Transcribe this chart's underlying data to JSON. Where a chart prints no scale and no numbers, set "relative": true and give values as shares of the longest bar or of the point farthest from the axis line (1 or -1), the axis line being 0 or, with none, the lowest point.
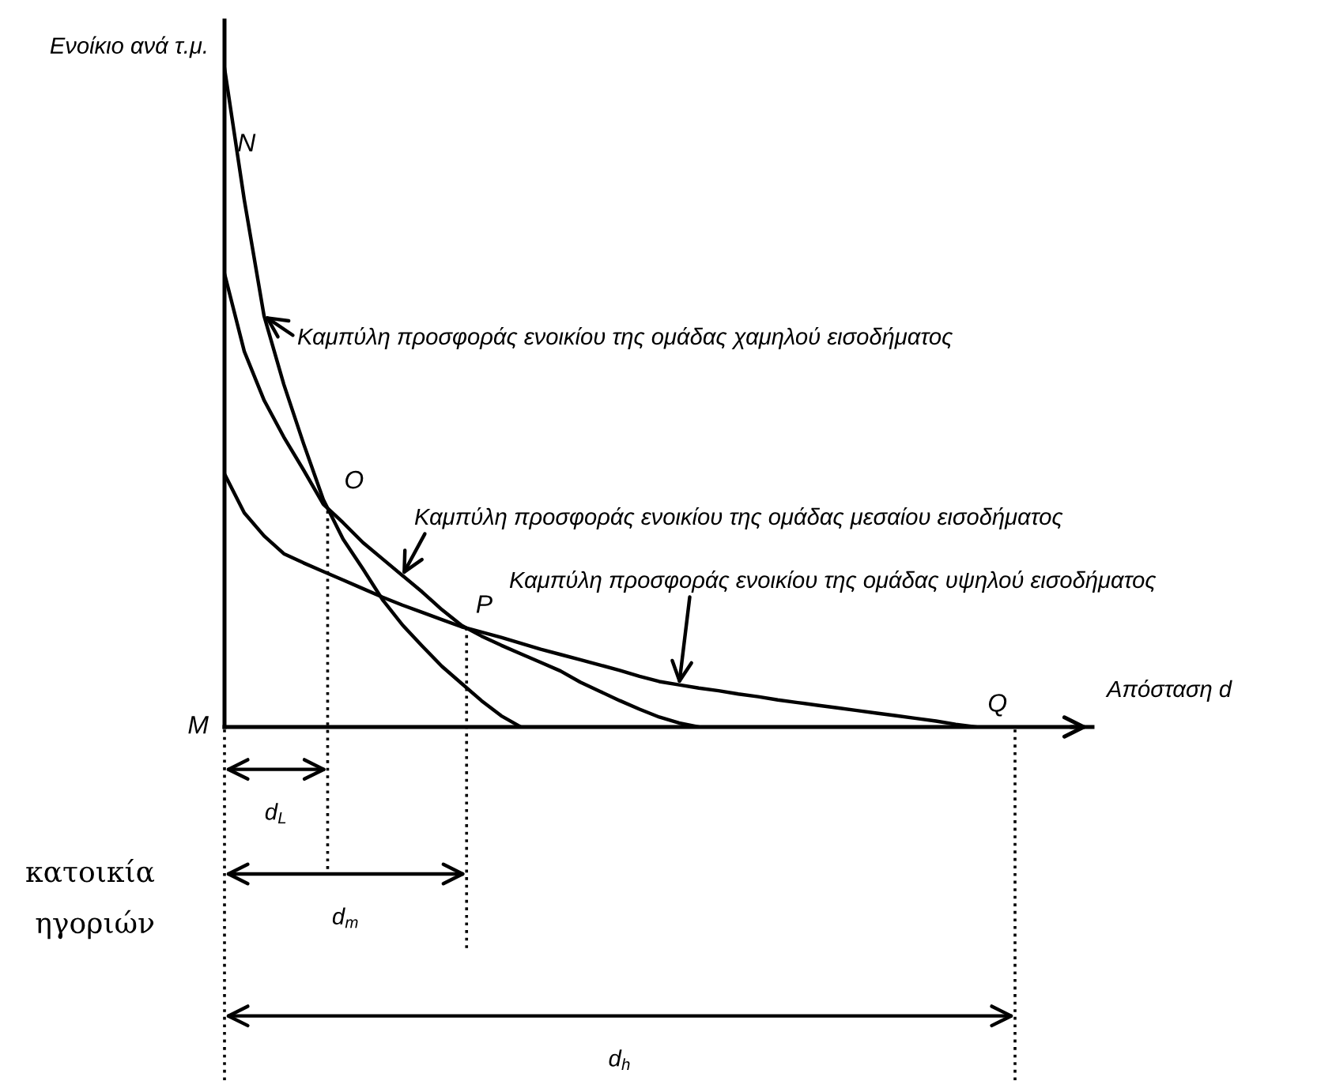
{
  "chart_data": {
    "type": "line",
    "relative": true,
    "ylabel": "Ενοίκιο ανά τ.μ.",
    "xlabel": "Απόσταση d",
    "categories": [
      null,
      null,
      null,
      null,
      null,
      null,
      null,
      null,
      null,
      null,
      null,
      null,
      null,
      null,
      null,
      null,
      null,
      null,
      null,
      null,
      null,
      null,
      null,
      null,
      null,
      null,
      null,
      null,
      null,
      null,
      null,
      null,
      null,
      null,
      null,
      null,
      null,
      null,
      null,
      null,
      null
    ],
    "series": [
      {
        "name": "Καμπύλη προσφοράς ενοικίου της ομάδας χαμηλού εισοδήματος",
        "color": "#000000",
        "values": [
          1.0,
          0.8,
          0.624,
          0.52,
          0.43,
          0.345,
          0.285,
          0.24,
          0.193,
          0.155,
          0.123,
          0.092,
          0.066,
          0.04,
          0.017,
          0,
          null,
          null,
          null,
          null,
          null,
          null,
          null,
          null,
          null,
          null,
          null,
          null,
          null,
          null,
          null,
          null,
          null,
          null,
          null,
          null,
          null,
          null,
          null,
          null,
          null
        ]
      },
      {
        "name": "Καμπύλη προσφοράς ενοικίου της ομάδας μεσαίου εισοδήματος",
        "color": "#000000",
        "values": [
          0.688,
          0.57,
          0.496,
          0.44,
          0.39,
          0.338,
          0.31,
          0.28,
          0.255,
          0.23,
          0.205,
          0.178,
          0.154,
          0.138,
          0.124,
          0.111,
          0.098,
          0.085,
          0.068,
          0.054,
          0.04,
          0.027,
          0.015,
          0.006,
          0,
          null,
          null,
          null,
          null,
          null,
          null,
          null,
          null,
          null,
          null,
          null,
          null,
          null,
          null,
          null,
          null
        ]
      },
      {
        "name": "Καμπύλη προσφοράς ενοικίου της ομάδας υψηλού εισοδήματος",
        "color": "#000000",
        "values": [
          0.384,
          0.325,
          0.29,
          0.263,
          0.249,
          0.236,
          0.223,
          0.21,
          0.197,
          0.185,
          0.174,
          0.163,
          0.152,
          0.144,
          0.136,
          0.127,
          0.118,
          0.11,
          0.102,
          0.094,
          0.086,
          0.077,
          0.069,
          0.064,
          0.059,
          0.055,
          0.05,
          0.046,
          0.041,
          0.037,
          0.033,
          0.029,
          0.025,
          0.021,
          0.017,
          0.013,
          0.009,
          0.004,
          0,
          null,
          null
        ]
      }
    ],
    "annotations": [
      "N",
      "O",
      "P",
      "Q",
      "M",
      "d$_{L}$",
      "d$_{m}$",
      "d$_{h}$",
      "κατοικία",
      "ηγοριών"
    ],
    "marker": "none",
    "line_style": "solid"
  }
}
